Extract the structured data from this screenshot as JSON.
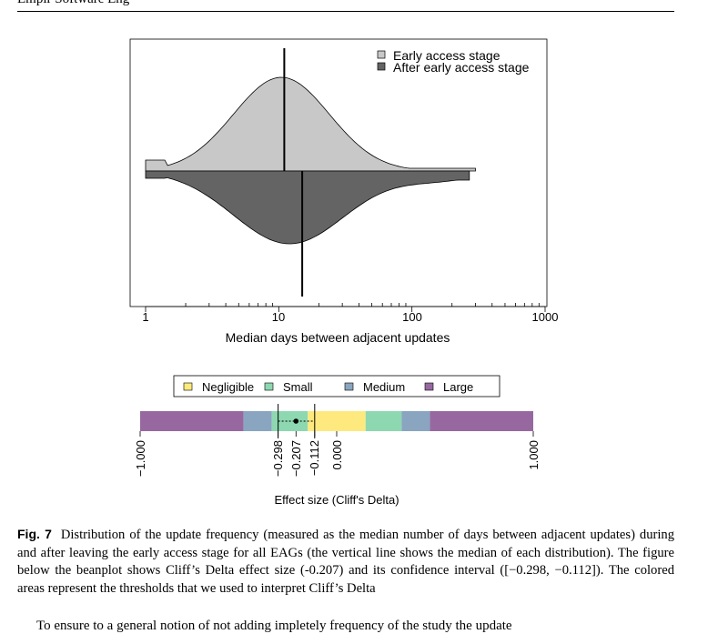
{
  "header": {
    "running_head": "Empir Software Eng"
  },
  "chart_data": [
    {
      "type": "beanplot",
      "xlabel": "Median days between adjacent updates",
      "xscale": "log",
      "xlim": [
        1,
        1000
      ],
      "xticks": [
        1,
        10,
        100,
        1000
      ],
      "xtick_labels": [
        "1",
        "10",
        "100",
        "1000"
      ],
      "legend_position": "top-right",
      "series": [
        {
          "name": "Early access stage",
          "color": "#c8c8c8",
          "median": 11,
          "range": [
            1,
            300
          ]
        },
        {
          "name": "After early access stage",
          "color": "#646464",
          "median": 15,
          "range": [
            1,
            270
          ]
        }
      ]
    },
    {
      "type": "effect-size",
      "xlabel": "Effect size (Cliff's Delta)",
      "xlim": [
        -1,
        1
      ],
      "estimate": -0.207,
      "ci": [
        -0.298,
        -0.112
      ],
      "tick_labels": [
        "−1.000",
        "−0.298",
        "−0.207",
        "−0.112",
        "0.000",
        "1.000"
      ],
      "legend": [
        {
          "name": "Negligible",
          "color": "#fde97e"
        },
        {
          "name": "Small",
          "color": "#8dd8b0"
        },
        {
          "name": "Medium",
          "color": "#8aa5bf"
        },
        {
          "name": "Large",
          "color": "#9768a0"
        }
      ],
      "thresholds": {
        "negligible": 0.147,
        "small": 0.33,
        "medium": 0.474
      }
    }
  ],
  "caption": {
    "label": "Fig. 7",
    "text": "Distribution of the update frequency (measured as the median number of days between adjacent updates) during and after leaving the early access stage for all EAGs (the vertical line shows the median of each distribution). The figure below the beanplot shows Cliff’s Delta effect size (-0.207) and its confidence interval ([−0.298, −0.112]). The colored areas represent the thresholds that we used to interpret Cliff’s Delta"
  },
  "body_text": {
    "next_line": "To ensure to a general notion of not adding impletely frequency of the study the update"
  }
}
